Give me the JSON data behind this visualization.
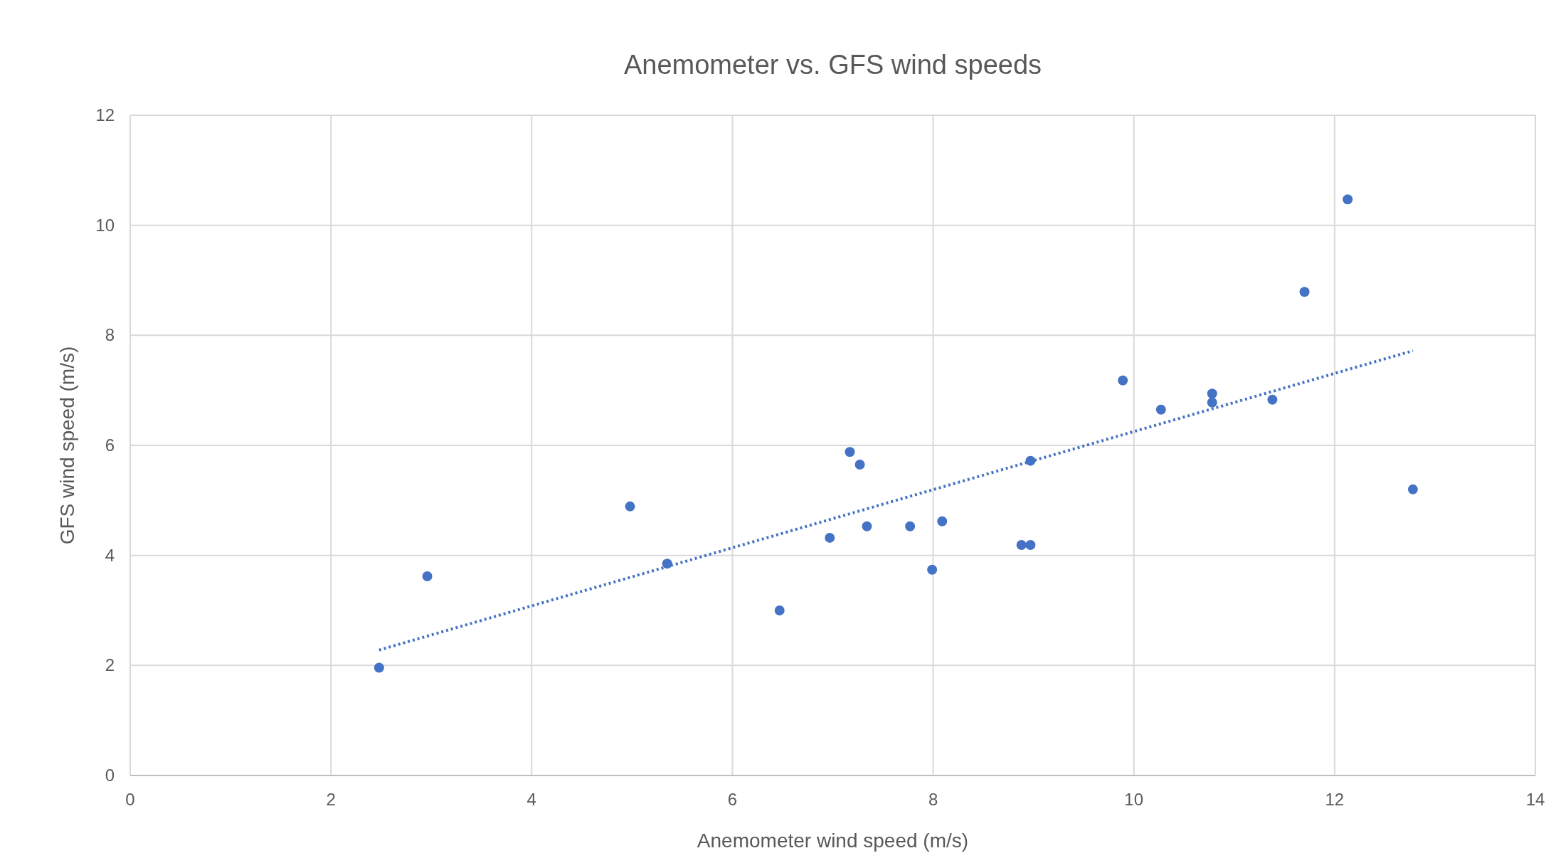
{
  "chart_data": {
    "type": "scatter",
    "title": "Anemometer vs. GFS wind speeds",
    "xlabel": "Anemometer wind speed (m/s)",
    "ylabel": "GFS wind speed (m/s)",
    "xlim": [
      0,
      14
    ],
    "xticks": [
      0,
      2,
      4,
      6,
      8,
      10,
      12,
      14
    ],
    "ylim": [
      0,
      12
    ],
    "yticks": [
      0,
      2,
      4,
      6,
      8,
      10,
      12
    ],
    "grid": true,
    "marker": "circle",
    "series": [
      {
        "color": "#4472c4",
        "x": [
          2.48,
          2.96,
          4.98,
          5.35,
          6.47,
          6.97,
          7.17,
          7.27,
          7.34,
          7.77,
          7.99,
          8.09,
          8.88,
          8.97,
          8.97,
          9.89,
          10.27,
          10.78,
          10.78,
          11.38,
          11.7,
          12.13,
          12.78
        ],
        "values": [
          1.96,
          3.62,
          4.89,
          3.85,
          3.0,
          4.32,
          5.88,
          5.65,
          4.53,
          4.53,
          3.74,
          4.62,
          4.19,
          4.19,
          5.72,
          7.18,
          6.65,
          6.94,
          6.78,
          6.83,
          8.79,
          10.47,
          5.2
        ]
      },
      {
        "type": "line",
        "color": "#4472c4",
        "line_style": "dotted",
        "marker": "none",
        "x": [
          2.48,
          12.78
        ],
        "values": [
          2.28,
          7.72
        ]
      }
    ]
  }
}
